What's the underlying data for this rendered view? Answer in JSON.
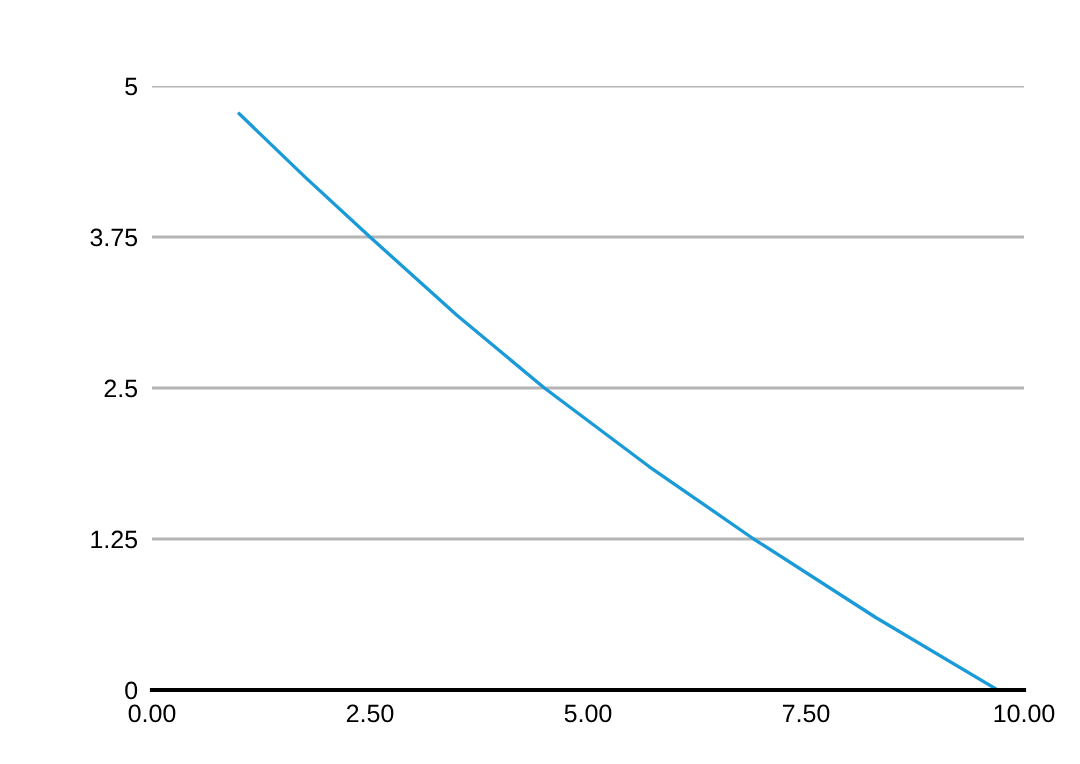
{
  "chart_data": {
    "type": "line",
    "series": [
      {
        "color": "#1a9bd7",
        "x": [
          1,
          1.75,
          2.5,
          3.5,
          4.5,
          5.7,
          6.9,
          8.3,
          9.7
        ],
        "values": [
          4.77,
          4.25,
          3.75,
          3.1,
          2.5,
          1.85,
          1.25,
          0.6,
          0
        ]
      }
    ],
    "xlim": [
      0,
      10
    ],
    "ylim": [
      0,
      5
    ],
    "xticks": [
      {
        "value": 0,
        "label": "0.00"
      },
      {
        "value": 2.5,
        "label": "2.50"
      },
      {
        "value": 5,
        "label": "5.00"
      },
      {
        "value": 7.5,
        "label": "7.50"
      },
      {
        "value": 10,
        "label": "10.00"
      }
    ],
    "yticks": [
      0,
      1.25,
      2.5,
      3.75,
      5
    ],
    "grid": "y",
    "marker": "none",
    "line_style": "solid"
  }
}
